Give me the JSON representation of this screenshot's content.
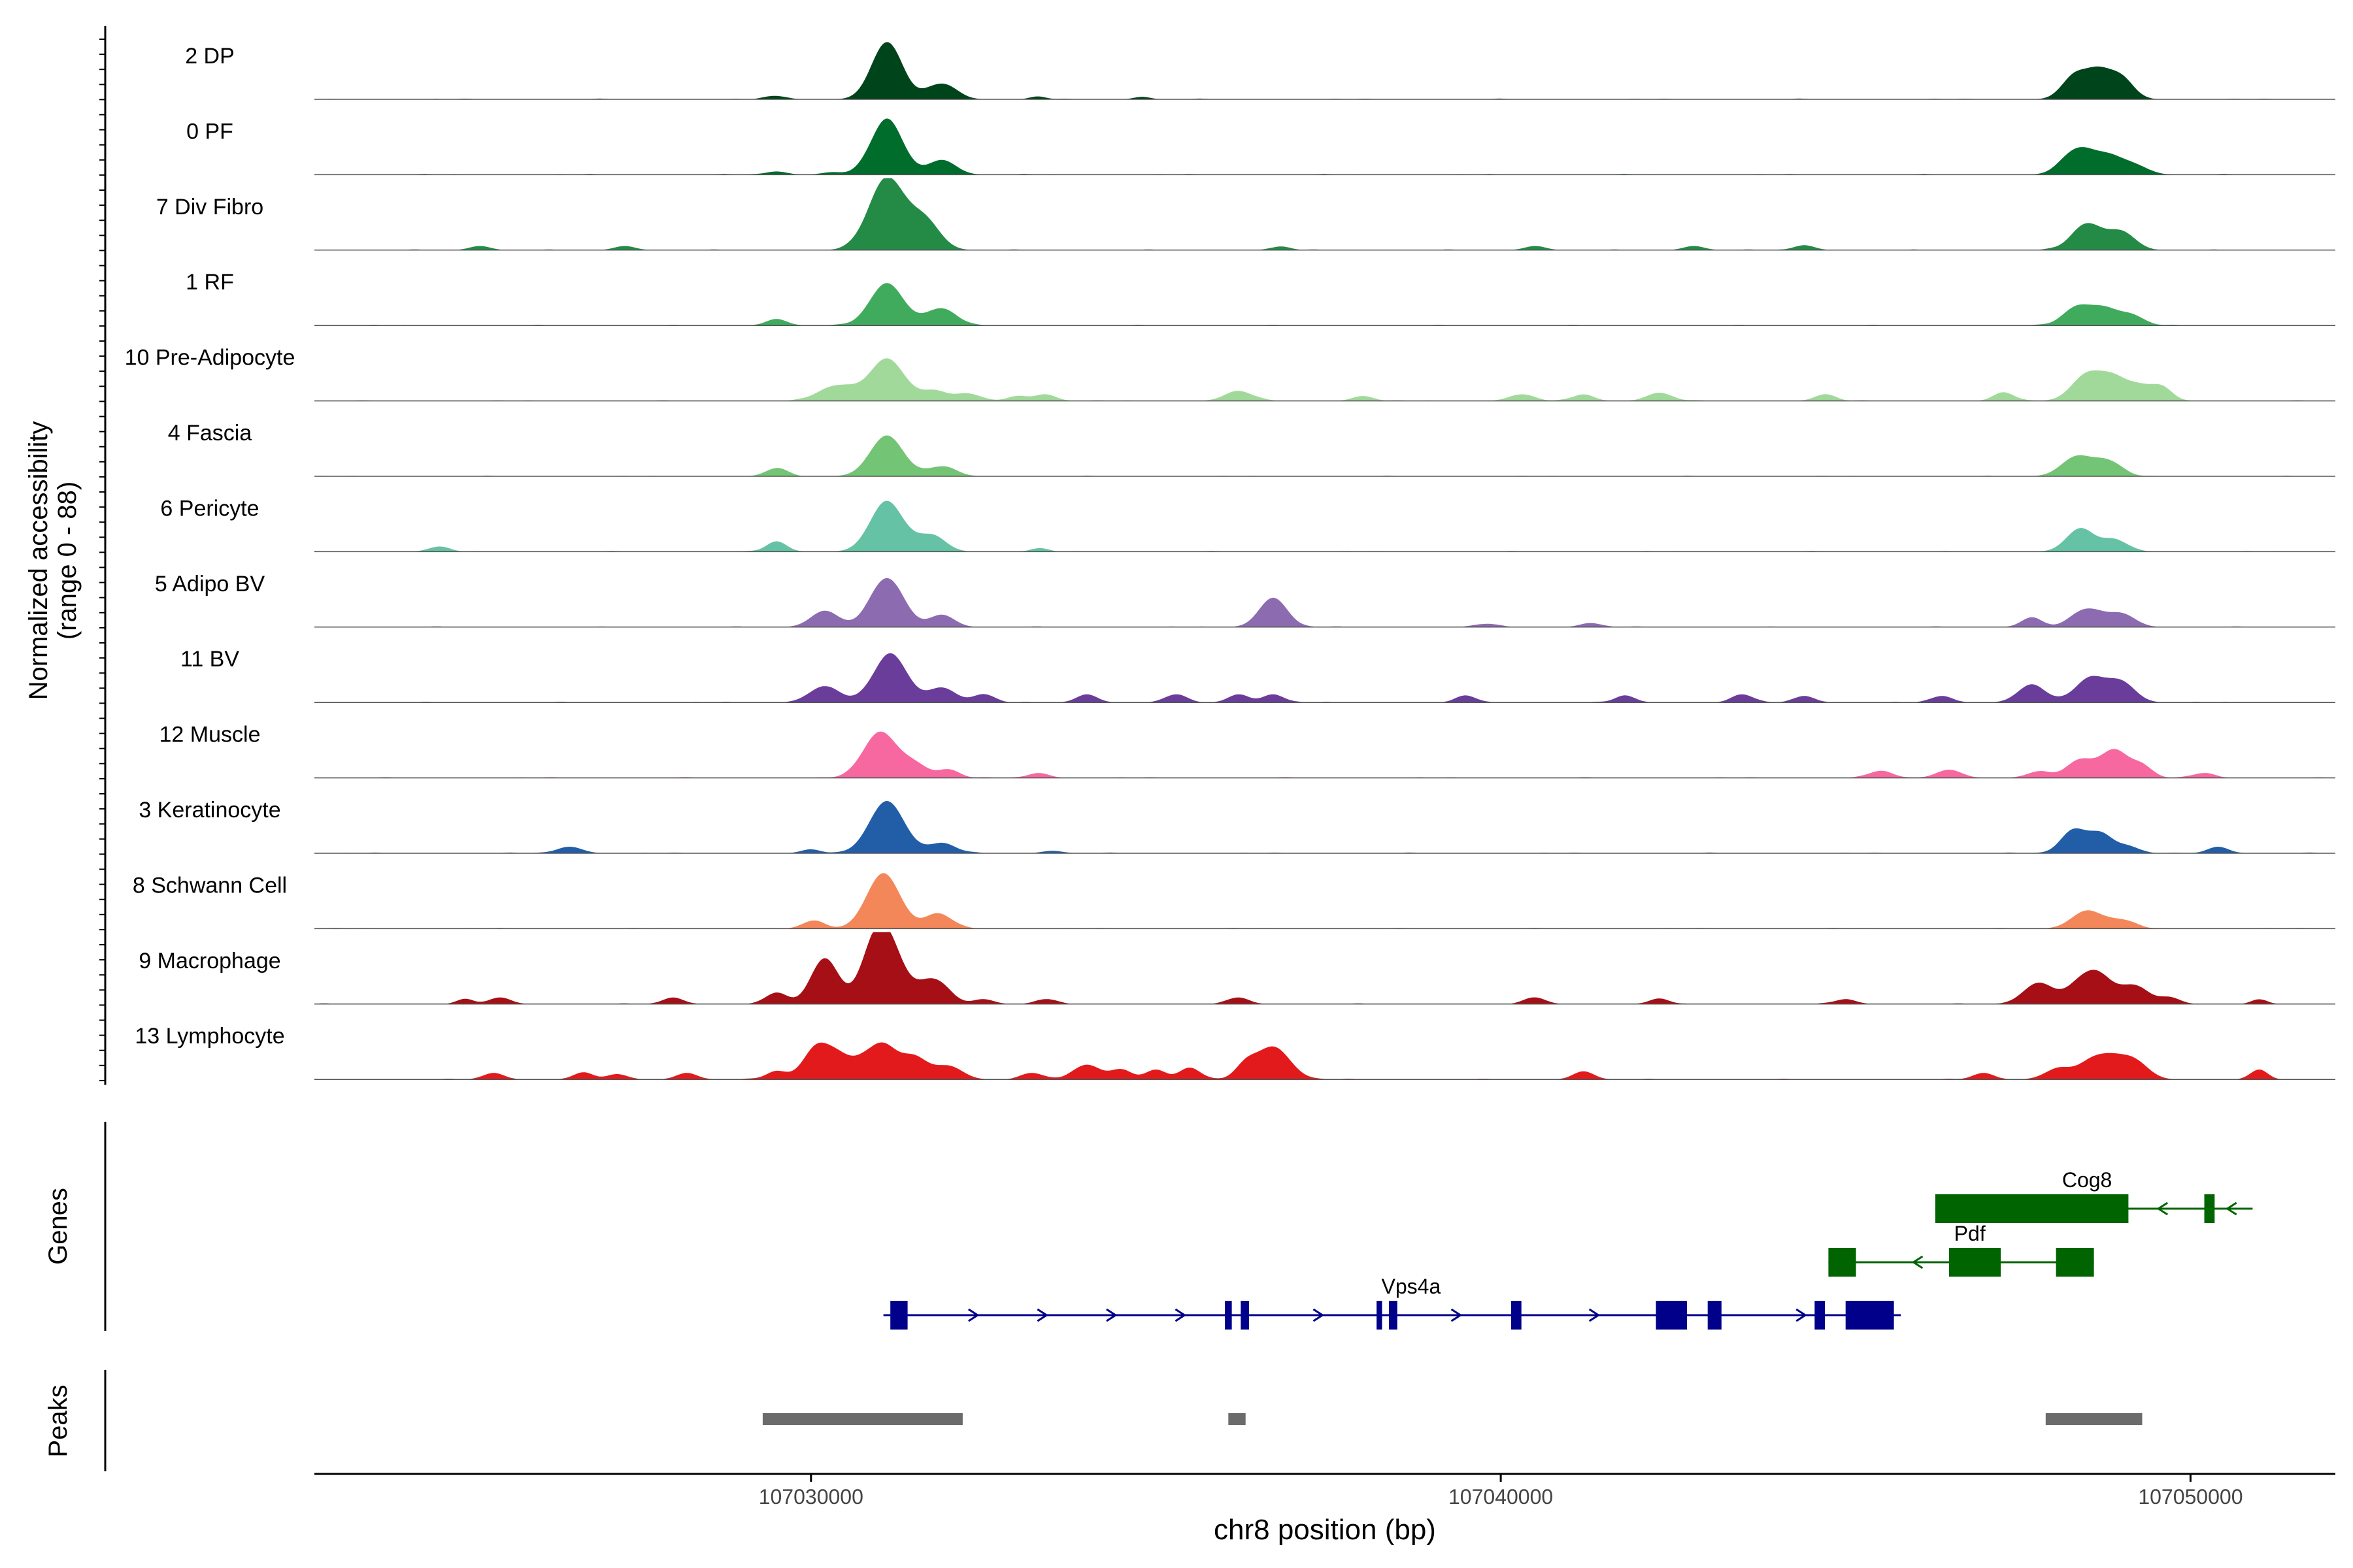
{
  "chart_data": {
    "type": "area",
    "title": "",
    "xlabel": "chr8 position (bp)",
    "ylabel_line1": "Normalized accessibility",
    "ylabel_line2": "(range 0 - 88)",
    "yrange": [
      0,
      88
    ],
    "xlim": [
      107022800,
      107052100
    ],
    "x_ticks": [
      {
        "value": 107030000,
        "label": "107030000"
      },
      {
        "value": 107040000,
        "label": "107040000"
      },
      {
        "value": 107050000,
        "label": "107050000"
      }
    ],
    "tracks": [
      {
        "name": "2 DP",
        "color": "#00441b",
        "peaks": [
          [
            107031100,
            70,
            220
          ],
          [
            107031800,
            12,
            200
          ],
          [
            107032000,
            10,
            180
          ],
          [
            107048300,
            25,
            180
          ],
          [
            107048650,
            32,
            200
          ],
          [
            107049000,
            24,
            180
          ],
          [
            107029500,
            4,
            150
          ],
          [
            107033300,
            3,
            120
          ],
          [
            107034800,
            3,
            120
          ]
        ]
      },
      {
        "name": "0 PF",
        "color": "#006d2c",
        "peaks": [
          [
            107031100,
            68,
            230
          ],
          [
            107031900,
            18,
            200
          ],
          [
            107048350,
            30,
            220
          ],
          [
            107048800,
            22,
            220
          ],
          [
            107049200,
            10,
            200
          ],
          [
            107029500,
            4,
            150
          ],
          [
            107030300,
            3,
            150
          ]
        ]
      },
      {
        "name": "7 Div Fibro",
        "color": "#238b45",
        "peaks": [
          [
            107031100,
            88,
            260
          ],
          [
            107031650,
            35,
            220
          ],
          [
            107048500,
            32,
            220
          ],
          [
            107049000,
            22,
            200
          ],
          [
            107025200,
            5,
            150
          ],
          [
            107027300,
            5,
            150
          ],
          [
            107036800,
            4,
            150
          ],
          [
            107040500,
            5,
            150
          ],
          [
            107042800,
            5,
            150
          ],
          [
            107044400,
            6,
            150
          ]
        ]
      },
      {
        "name": "1 RF",
        "color": "#41ab5d",
        "peaks": [
          [
            107031100,
            52,
            240
          ],
          [
            107031800,
            14,
            200
          ],
          [
            107032000,
            10,
            180
          ],
          [
            107048350,
            22,
            200
          ],
          [
            107048750,
            20,
            200
          ],
          [
            107049150,
            12,
            180
          ],
          [
            107029500,
            8,
            150
          ]
        ]
      },
      {
        "name": "10 Pre-Adipocyte",
        "color": "#a1d99b",
        "peaks": [
          [
            107031100,
            52,
            250
          ],
          [
            107030500,
            14,
            200
          ],
          [
            107030200,
            10,
            200
          ],
          [
            107031800,
            12,
            200
          ],
          [
            107032300,
            8,
            180
          ],
          [
            107033000,
            6,
            150
          ],
          [
            107033400,
            8,
            150
          ],
          [
            107036200,
            12,
            200
          ],
          [
            107038000,
            6,
            150
          ],
          [
            107040300,
            8,
            180
          ],
          [
            107041200,
            8,
            150
          ],
          [
            107042300,
            10,
            180
          ],
          [
            107044700,
            8,
            150
          ],
          [
            107047300,
            10,
            150
          ],
          [
            107048500,
            32,
            220
          ],
          [
            107048900,
            26,
            200
          ],
          [
            107049300,
            16,
            180
          ],
          [
            107049600,
            14,
            150
          ]
        ]
      },
      {
        "name": "4 Fascia",
        "color": "#74c476",
        "peaks": [
          [
            107031100,
            50,
            240
          ],
          [
            107031900,
            12,
            200
          ],
          [
            107029500,
            10,
            150
          ],
          [
            107048350,
            24,
            220
          ],
          [
            107048800,
            18,
            200
          ]
        ]
      },
      {
        "name": "6 Pericyte",
        "color": "#66c2a4",
        "peaks": [
          [
            107031100,
            62,
            240
          ],
          [
            107031750,
            20,
            200
          ],
          [
            107029500,
            12,
            150
          ],
          [
            107024600,
            6,
            150
          ],
          [
            107048400,
            28,
            200
          ],
          [
            107048900,
            14,
            200
          ],
          [
            107033300,
            4,
            120
          ]
        ]
      },
      {
        "name": "5 Adipo BV",
        "color": "#8c6bb1",
        "peaks": [
          [
            107031100,
            60,
            240
          ],
          [
            107030200,
            20,
            200
          ],
          [
            107031900,
            15,
            180
          ],
          [
            107036700,
            36,
            200
          ],
          [
            107047700,
            12,
            150
          ],
          [
            107048500,
            22,
            220
          ],
          [
            107049000,
            16,
            200
          ],
          [
            107041300,
            5,
            150
          ],
          [
            107039800,
            4,
            150
          ]
        ]
      },
      {
        "name": "11 BV",
        "color": "#6a3d9a",
        "peaks": [
          [
            107031150,
            60,
            240
          ],
          [
            107030200,
            20,
            220
          ],
          [
            107031900,
            18,
            200
          ],
          [
            107032500,
            10,
            150
          ],
          [
            107034000,
            10,
            150
          ],
          [
            107035300,
            10,
            150
          ],
          [
            107036200,
            10,
            150
          ],
          [
            107036700,
            10,
            150
          ],
          [
            107039500,
            8,
            150
          ],
          [
            107041800,
            8,
            150
          ],
          [
            107043500,
            10,
            150
          ],
          [
            107044400,
            8,
            150
          ],
          [
            107046400,
            8,
            150
          ],
          [
            107047700,
            22,
            200
          ],
          [
            107048550,
            30,
            220
          ],
          [
            107049000,
            24,
            200
          ]
        ]
      },
      {
        "name": "12 Muscle",
        "color": "#f768a1",
        "peaks": [
          [
            107031000,
            56,
            240
          ],
          [
            107031500,
            16,
            200
          ],
          [
            107032000,
            10,
            150
          ],
          [
            107033300,
            6,
            150
          ],
          [
            107045500,
            8,
            180
          ],
          [
            107046500,
            10,
            180
          ],
          [
            107047800,
            8,
            150
          ],
          [
            107048400,
            22,
            200
          ],
          [
            107048900,
            34,
            200
          ],
          [
            107049300,
            14,
            150
          ],
          [
            107050200,
            6,
            150
          ]
        ]
      },
      {
        "name": "3 Keratinocyte",
        "color": "#225ea8",
        "peaks": [
          [
            107031100,
            64,
            250
          ],
          [
            107031900,
            12,
            200
          ],
          [
            107026500,
            8,
            180
          ],
          [
            107048300,
            28,
            180
          ],
          [
            107048700,
            24,
            180
          ],
          [
            107049100,
            8,
            150
          ],
          [
            107050400,
            8,
            150
          ],
          [
            107030000,
            4,
            150
          ],
          [
            107033500,
            3,
            150
          ]
        ]
      },
      {
        "name": "8 Schwann Cell",
        "color": "#f4875a",
        "peaks": [
          [
            107031050,
            68,
            240
          ],
          [
            107031850,
            18,
            200
          ],
          [
            107030050,
            10,
            150
          ],
          [
            107048500,
            22,
            220
          ],
          [
            107049000,
            10,
            200
          ]
        ]
      },
      {
        "name": "9 Macrophage",
        "color": "#a50f15",
        "peaks": [
          [
            107030200,
            56,
            200
          ],
          [
            107031100,
            72,
            240
          ],
          [
            107030900,
            38,
            200
          ],
          [
            107031700,
            20,
            200
          ],
          [
            107031900,
            14,
            180
          ],
          [
            107029500,
            14,
            150
          ],
          [
            107028000,
            8,
            150
          ],
          [
            107025500,
            8,
            150
          ],
          [
            107025000,
            6,
            120
          ],
          [
            107032500,
            6,
            150
          ],
          [
            107033400,
            6,
            150
          ],
          [
            107036200,
            8,
            150
          ],
          [
            107040500,
            8,
            150
          ],
          [
            107042300,
            6,
            150
          ],
          [
            107045000,
            6,
            150
          ],
          [
            107047800,
            26,
            220
          ],
          [
            107048400,
            24,
            200
          ],
          [
            107048700,
            30,
            200
          ],
          [
            107049200,
            22,
            200
          ],
          [
            107049700,
            8,
            150
          ],
          [
            107051000,
            5,
            120
          ]
        ]
      },
      {
        "name": "13 Lymphocyte",
        "color": "#e31a1c",
        "peaks": [
          [
            107030100,
            42,
            200
          ],
          [
            107030700,
            20,
            200
          ],
          [
            107031050,
            38,
            200
          ],
          [
            107031500,
            26,
            200
          ],
          [
            107032000,
            16,
            200
          ],
          [
            107030400,
            16,
            150
          ],
          [
            107029500,
            10,
            150
          ],
          [
            107034000,
            18,
            200
          ],
          [
            107034500,
            12,
            150
          ],
          [
            107035000,
            12,
            150
          ],
          [
            107035500,
            14,
            150
          ],
          [
            107036700,
            40,
            240
          ],
          [
            107036300,
            16,
            150
          ],
          [
            107033200,
            8,
            150
          ],
          [
            107025400,
            8,
            150
          ],
          [
            107026700,
            8,
            150
          ],
          [
            107027200,
            6,
            150
          ],
          [
            107028200,
            8,
            150
          ],
          [
            107041200,
            10,
            150
          ],
          [
            107047000,
            8,
            150
          ],
          [
            107048100,
            14,
            200
          ],
          [
            107048600,
            22,
            200
          ],
          [
            107048900,
            18,
            200
          ],
          [
            107049200,
            20,
            200
          ],
          [
            107051000,
            12,
            120
          ]
        ]
      }
    ],
    "genes_label": "Genes",
    "genes": [
      {
        "name": "Cog8",
        "strand": "-",
        "color": "#006400",
        "row": 0,
        "start": 107046300,
        "end": 107050900,
        "exons": [
          [
            107046300,
            107049100
          ],
          [
            107050200,
            107050350
          ]
        ],
        "label_pos": 107048500
      },
      {
        "name": "Pdf",
        "strand": "-",
        "color": "#006400",
        "row": 1,
        "start": 107044750,
        "end": 107048600,
        "exons": [
          [
            107044750,
            107045150
          ],
          [
            107046500,
            107047250
          ],
          [
            107048050,
            107048600
          ]
        ],
        "label_pos": 107046800
      },
      {
        "name": "Vps4a",
        "strand": "+",
        "color": "#00008b",
        "row": 2,
        "start": 107031050,
        "end": 107045800,
        "exons": [
          [
            107031150,
            107031400
          ],
          [
            107036000,
            107036100
          ],
          [
            107036230,
            107036350
          ],
          [
            107038200,
            107038280
          ],
          [
            107038380,
            107038500
          ],
          [
            107040150,
            107040300
          ],
          [
            107042250,
            107042700
          ],
          [
            107043000,
            107043200
          ],
          [
            107044550,
            107044700
          ],
          [
            107045000,
            107045700
          ]
        ],
        "label_pos": 107038700
      }
    ],
    "peaks_label": "Peaks",
    "peak_regions": [
      [
        107029300,
        107032200
      ],
      [
        107036050,
        107036300
      ],
      [
        107047900,
        107049300
      ]
    ]
  }
}
